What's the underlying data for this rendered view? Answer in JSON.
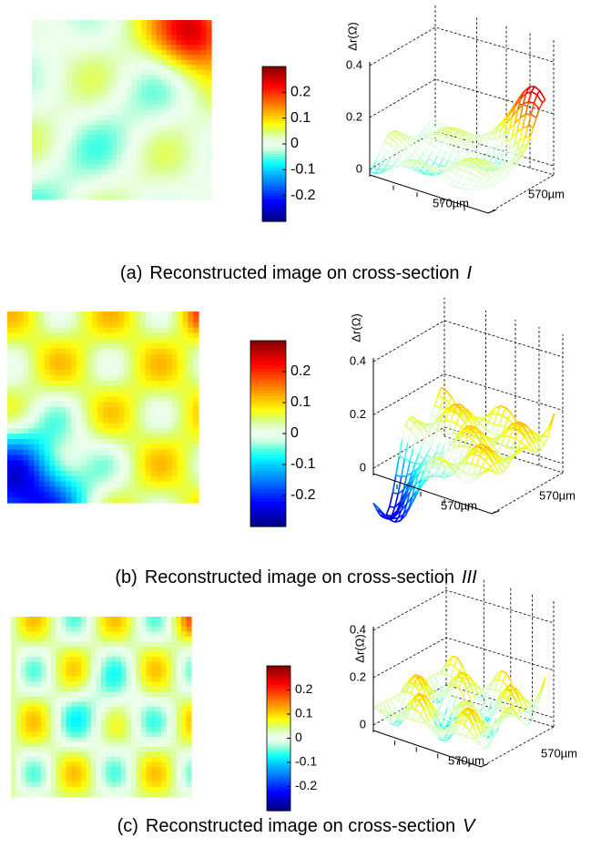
{
  "panels": [
    {
      "label": "(a)",
      "caption": "Reconstructed image on cross-section",
      "section": "I",
      "clim": [
        -0.3,
        0.3
      ],
      "colorbar_ticks": [
        0.2,
        0.1,
        0,
        -0.1,
        -0.2
      ],
      "zlabel": "Δr(Ω)",
      "zticks": [
        0,
        0.2,
        0.4
      ],
      "xlabel": "570µm",
      "ylabel": "570µm"
    },
    {
      "label": "(b)",
      "caption": "Reconstructed image on cross-section",
      "section": "III",
      "clim": [
        -0.3,
        0.3
      ],
      "colorbar_ticks": [
        0.2,
        0.1,
        0,
        -0.1,
        -0.2
      ],
      "zlabel": "Δr(Ω)",
      "zticks": [
        0,
        0.2,
        0.4
      ],
      "xlabel": "570µm",
      "ylabel": "570µm"
    },
    {
      "label": "(c)",
      "caption": "Reconstructed image on cross-section",
      "section": "V",
      "clim": [
        -0.3,
        0.3
      ],
      "colorbar_ticks": [
        0.2,
        0.1,
        0,
        -0.1,
        -0.2
      ],
      "zlabel": "Δr(Ω)",
      "zticks": [
        0,
        0.2,
        0.4
      ],
      "xlabel": "570µm",
      "ylabel": "570µm"
    }
  ]
}
